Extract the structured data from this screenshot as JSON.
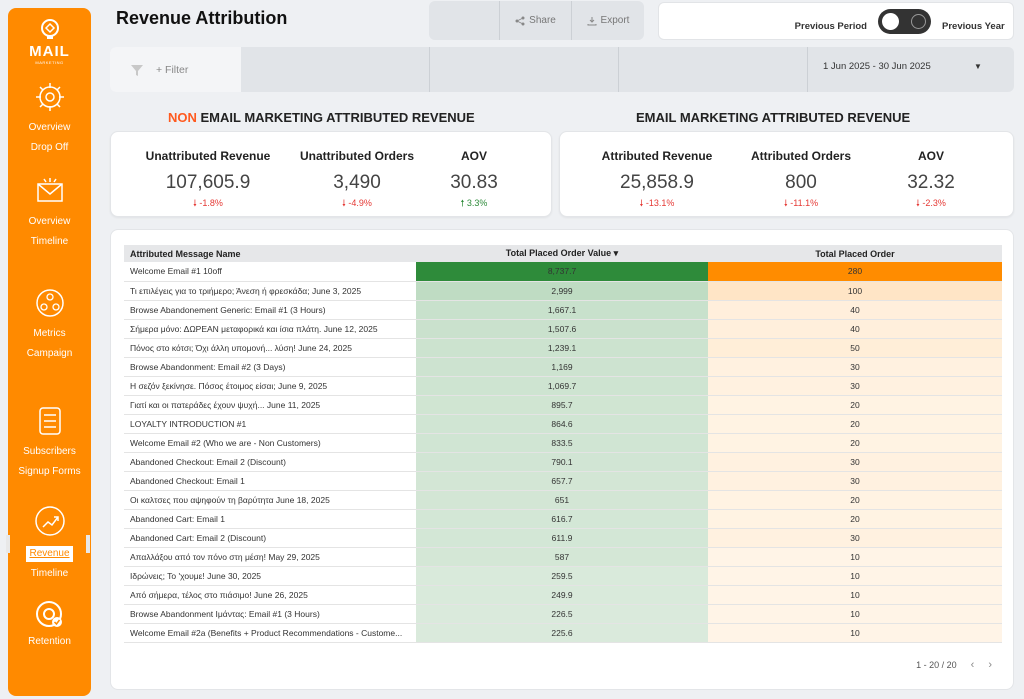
{
  "sidebar": {
    "logo_text": "MAIL",
    "logo_sub": "MARKETING",
    "items": [
      {
        "icon": "gear-bulb-icon",
        "l1": "Overview",
        "l2": "Drop Off"
      },
      {
        "icon": "envelope-icon",
        "l1": "Overview",
        "l2": "Timeline"
      },
      {
        "icon": "people-network-icon",
        "l1": "Metrics",
        "l2": "Campaign"
      },
      {
        "icon": "form-list-icon",
        "l1": "Subscribers",
        "l2": "Signup Forms"
      },
      {
        "icon": "trend-chart-icon",
        "l1": "Revenue",
        "l2": "Timeline"
      },
      {
        "icon": "retention-target-icon",
        "l1": "Retention",
        "l2": ""
      }
    ],
    "active_index": 4
  },
  "header": {
    "title": "Revenue Attribution",
    "share_label": "Share",
    "export_label": "Export",
    "toggle": {
      "left_label": "Previous Period",
      "right_label": "Previous Year"
    }
  },
  "filterbar": {
    "filter_label": "+ Filter",
    "date_range": "1 Jun 2025 - 30 Jun 2025"
  },
  "non_email": {
    "heading_prefix": "NON",
    "heading_rest": " EMAIL MARKETING ATTRIBUTED REVENUE",
    "kpis": [
      {
        "label": "Unattributed Revenue",
        "value": "107,605.9",
        "delta": "-1.8%",
        "trend": "down"
      },
      {
        "label": "Unattributed Orders",
        "value": "3,490",
        "delta": "-4.9%",
        "trend": "down"
      },
      {
        "label": "AOV",
        "value": "30.83",
        "delta": "3.3%",
        "trend": "up"
      }
    ]
  },
  "email": {
    "heading": "EMAIL MARKETING ATTRIBUTED REVENUE",
    "kpis": [
      {
        "label": "Attributed Revenue",
        "value": "25,858.9",
        "delta": "-13.1%",
        "trend": "down"
      },
      {
        "label": "Attributed Orders",
        "value": "800",
        "delta": "-11.1%",
        "trend": "down"
      },
      {
        "label": "AOV",
        "value": "32.32",
        "delta": "-2.3%",
        "trend": "down"
      }
    ]
  },
  "table": {
    "columns": [
      "Attributed Message Name",
      "Total Placed Order Value",
      "Total Placed Order"
    ],
    "sort_indicator": "▾",
    "rows": [
      {
        "name": "Welcome Email #1 10off",
        "value": 8737.7,
        "value_text": "8,737.7",
        "orders": 280
      },
      {
        "name": "Τι επιλέγεις για το τριήμερο; Άνεση ή φρεσκάδα; June 3, 2025",
        "value": 2999,
        "value_text": "2,999",
        "orders": 100
      },
      {
        "name": "Browse Abandonement Generic: Email #1 (3 Hours)",
        "value": 1667.1,
        "value_text": "1,667.1",
        "orders": 40
      },
      {
        "name": "Σήμερα μόνο: ΔΩΡΕΑΝ μεταφορικά και ίσια πλάτη. June 12, 2025",
        "value": 1507.6,
        "value_text": "1,507.6",
        "orders": 40
      },
      {
        "name": "Πόνος στο κότσι; Όχι άλλη υπομονή... λύση! June 24, 2025",
        "value": 1239.1,
        "value_text": "1,239.1",
        "orders": 50
      },
      {
        "name": "Browse Abandonment: Email #2 (3 Days)",
        "value": 1169,
        "value_text": "1,169",
        "orders": 30
      },
      {
        "name": "Η σεζόν ξεκίνησε. Πόσος έτοιμος είσαι; June 9, 2025",
        "value": 1069.7,
        "value_text": "1,069.7",
        "orders": 30
      },
      {
        "name": "Γιατί και οι πατεράδες έχουν ψυχή... June 11, 2025",
        "value": 895.7,
        "value_text": "895.7",
        "orders": 20
      },
      {
        "name": "LOYALTY INTRODUCTION #1",
        "value": 864.6,
        "value_text": "864.6",
        "orders": 20
      },
      {
        "name": "Welcome Email #2 (Who we are - Non Customers)",
        "value": 833.5,
        "value_text": "833.5",
        "orders": 20
      },
      {
        "name": "Abandoned Checkout: Email 2 (Discount)",
        "value": 790.1,
        "value_text": "790.1",
        "orders": 30
      },
      {
        "name": "Abandoned Checkout: Email 1",
        "value": 657.7,
        "value_text": "657.7",
        "orders": 30
      },
      {
        "name": "Οι καλτσες που αψηφούν τη βαρύτητα June 18, 2025",
        "value": 651,
        "value_text": "651",
        "orders": 20
      },
      {
        "name": "Abandoned Cart: Email 1",
        "value": 616.7,
        "value_text": "616.7",
        "orders": 20
      },
      {
        "name": "Abandoned Cart: Email 2 (Discount)",
        "value": 611.9,
        "value_text": "611.9",
        "orders": 30
      },
      {
        "name": "Απαλλάξου από τον πόνο στη μέση! May 29, 2025",
        "value": 587,
        "value_text": "587",
        "orders": 10
      },
      {
        "name": "Ιδρώνεις; Το 'χουμε! June 30, 2025",
        "value": 259.5,
        "value_text": "259.5",
        "orders": 10
      },
      {
        "name": "Από σήμερα, τέλος στο πιάσιμο! June 26, 2025",
        "value": 249.9,
        "value_text": "249.9",
        "orders": 10
      },
      {
        "name": "Browse Abandonment Ιμάντας: Email #1 (3 Hours)",
        "value": 226.5,
        "value_text": "226.5",
        "orders": 10
      },
      {
        "name": "Welcome Email #2a (Benefits + Product Recommendations - Custome...",
        "value": 225.6,
        "value_text": "225.6",
        "orders": 10
      }
    ],
    "pagination": "1 - 20 / 20"
  },
  "colors": {
    "brand_orange": "#ff8a00",
    "value_heat": "#2e8b3a",
    "orders_heat": "#ff8c00",
    "negative": "#e53935",
    "positive": "#2e8b3a"
  }
}
